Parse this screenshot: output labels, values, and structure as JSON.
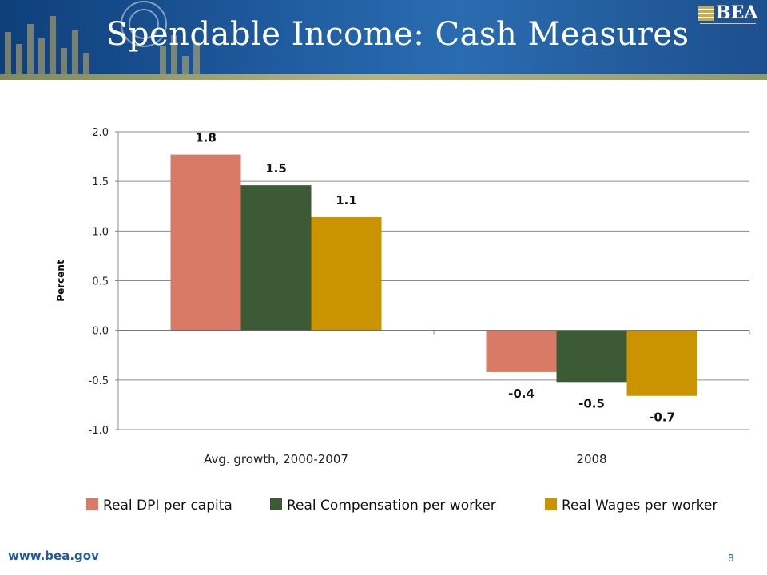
{
  "slide": {
    "title": "Spendable Income: Cash Measures",
    "logo_text": "BEA",
    "footer_url": "www.bea.gov",
    "page_number": "8"
  },
  "colors": {
    "banner": "#1f5a9e",
    "series": [
      "#d97a66",
      "#3d5a36",
      "#c99400"
    ]
  },
  "chart_data": {
    "type": "bar",
    "categories": [
      "Avg. growth, 2000-2007",
      "2008"
    ],
    "series": [
      {
        "name": "Real DPI per capita",
        "values": [
          1.77,
          -0.42
        ],
        "labels": [
          "1.8",
          "-0.4"
        ]
      },
      {
        "name": "Real Compensation per worker",
        "values": [
          1.46,
          -0.52
        ],
        "labels": [
          "1.5",
          "-0.5"
        ]
      },
      {
        "name": "Real Wages per worker",
        "values": [
          1.14,
          -0.66
        ],
        "labels": [
          "1.1",
          "-0.7"
        ]
      }
    ],
    "ylabel": "Percent",
    "xlabel": "",
    "ylim": [
      -1.0,
      2.0
    ],
    "yticks": [
      2.0,
      1.5,
      1.0,
      0.5,
      0.0,
      -0.5,
      -1.0
    ],
    "ytick_labels": [
      "2.0",
      "1.5",
      "1.0",
      "0.5",
      "0.0",
      "-0.5",
      "-1.0"
    ],
    "grid": true,
    "legend": "bottom"
  }
}
